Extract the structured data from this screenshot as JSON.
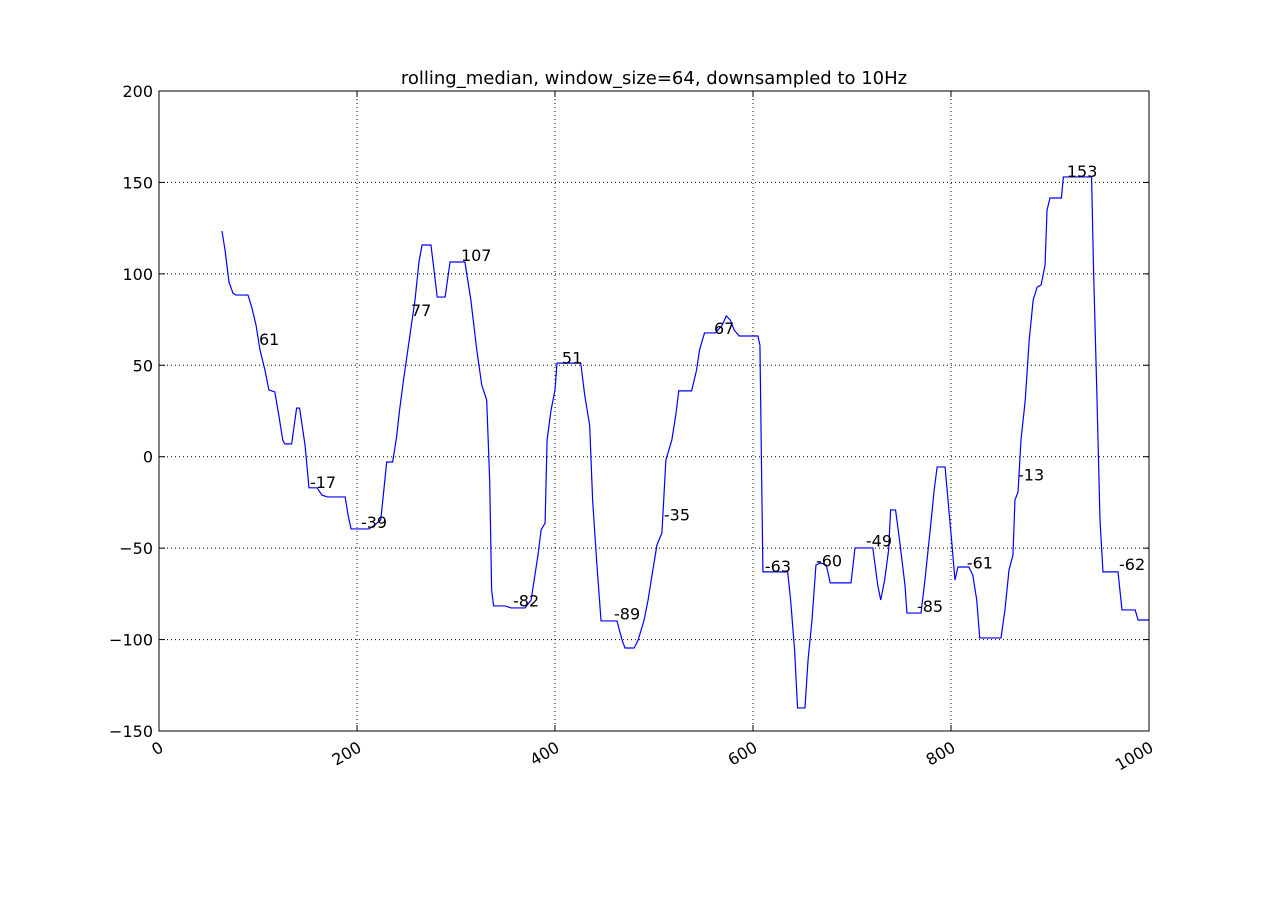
{
  "chart_data": {
    "type": "line",
    "title": "rolling_median, window_size=64, downsampled to 10Hz",
    "x": [
      63.6,
      66.7,
      70.7,
      74.7,
      77.8,
      89.9,
      93.9,
      98,
      102,
      107,
      111,
      117,
      121,
      125,
      127,
      134,
      139,
      142,
      147.5,
      151.5,
      159.6,
      164.6,
      170,
      188,
      191,
      194,
      212,
      218,
      224,
      230,
      236,
      240,
      243,
      247,
      253.5,
      258.6,
      262.6,
      265.7,
      274.7,
      277.8,
      281,
      289,
      294,
      309,
      315,
      321,
      326,
      331,
      334,
      336,
      338,
      349.5,
      355.6,
      369.7,
      375.8,
      379,
      382.8,
      386,
      390,
      392,
      396,
      400,
      402,
      426,
      430,
      435,
      438,
      442,
      446.5,
      462.6,
      467.7,
      470.7,
      480,
      484,
      490,
      494,
      498,
      503,
      508,
      512,
      518,
      522,
      525,
      538,
      543,
      546,
      551,
      562,
      569,
      573,
      577,
      581,
      586,
      605,
      607,
      610,
      635,
      638,
      642,
      645,
      652.5,
      655.6,
      659.6,
      663.6,
      668,
      674,
      678,
      699,
      703,
      721,
      726,
      729,
      733,
      737,
      739,
      744,
      748,
      753.5,
      755.5,
      769.7,
      773.7,
      779,
      783,
      786,
      794,
      797,
      801,
      804,
      807,
      818,
      822,
      826,
      829,
      850.5,
      854.5,
      858.6,
      862.6,
      864.6,
      867.7,
      870.7,
      875,
      879,
      883,
      887,
      891,
      895,
      897,
      900,
      911.5,
      913.5,
      942,
      944,
      947.5,
      950.5,
      953.5,
      968.7,
      972.7,
      986,
      989,
      1000
    ],
    "series": [
      {
        "color": "#0000ff",
        "values": [
          123.4,
          113,
          95.5,
          89.5,
          88.4,
          88.4,
          81.3,
          72,
          58.4,
          47.4,
          36.5,
          35.4,
          22.8,
          9.1,
          7,
          7,
          26.6,
          26.6,
          6.4,
          -17,
          -17,
          -21,
          -22,
          -22,
          -32,
          -39.5,
          -39.5,
          -37.3,
          -34.6,
          -2.9,
          -2.9,
          10.8,
          25.5,
          42,
          66.6,
          85.7,
          106.5,
          115.8,
          115.8,
          102,
          87.3,
          87.3,
          106.5,
          106.5,
          85.7,
          58.4,
          39.2,
          31,
          -12.7,
          -72.9,
          -81.6,
          -81.6,
          -82.7,
          -82.7,
          -78.4,
          -67.4,
          -53.7,
          -40,
          -36.3,
          9.1,
          25.5,
          36.5,
          51.2,
          51.2,
          33.7,
          17.3,
          -23.7,
          -56.5,
          -89.8,
          -89.8,
          -100.2,
          -104.6,
          -104.6,
          -100.2,
          -89.3,
          -78.4,
          -64.7,
          -48.2,
          -41.7,
          -1.8,
          9.1,
          22.8,
          36,
          36,
          47.4,
          58.4,
          67.7,
          67.7,
          72,
          77,
          74.8,
          69.3,
          66,
          66,
          61,
          -63,
          -63,
          -78.4,
          -105.7,
          -137.4,
          -137.4,
          -111.2,
          -89.3,
          -59.2,
          -58.1,
          -59.2,
          -69,
          -69,
          -49.9,
          -49.9,
          -70.2,
          -78.4,
          -67.4,
          -51,
          -29.1,
          -29.1,
          -45.5,
          -70.2,
          -85.5,
          -85.5,
          -67.4,
          -40,
          -18.2,
          -5.6,
          -5.6,
          -23.7,
          -48.2,
          -67.4,
          -60.3,
          -60.3,
          -64.7,
          -78.4,
          -99.1,
          -99.1,
          -83.8,
          -61.9,
          -53.7,
          -23.7,
          -19.3,
          9.1,
          31,
          63.8,
          85.7,
          92.8,
          93.9,
          104.8,
          134.9,
          141.5,
          141.5,
          153,
          153,
          102,
          31,
          -34.6,
          -63,
          -63,
          -83.8,
          -83.8,
          -89.3,
          -89.3
        ]
      }
    ],
    "annotations": [
      {
        "x": 101,
        "y": 61
      },
      {
        "x": 152.5,
        "y": -17
      },
      {
        "x": 204,
        "y": -39
      },
      {
        "x": 254.5,
        "y": 77
      },
      {
        "x": 305,
        "y": 107
      },
      {
        "x": 357.6,
        "y": -82
      },
      {
        "x": 407,
        "y": 51
      },
      {
        "x": 459.6,
        "y": -89
      },
      {
        "x": 510,
        "y": -35
      },
      {
        "x": 560.6,
        "y": 67
      },
      {
        "x": 612,
        "y": -63
      },
      {
        "x": 663.6,
        "y": -60
      },
      {
        "x": 714,
        "y": -49
      },
      {
        "x": 765.6,
        "y": -85
      },
      {
        "x": 816,
        "y": -61
      },
      {
        "x": 867.7,
        "y": -13
      },
      {
        "x": 917,
        "y": 153
      },
      {
        "x": 969.7,
        "y": -62
      }
    ],
    "xlim": [
      0,
      1000
    ],
    "ylim": [
      -150,
      200
    ],
    "xticks": [
      0,
      200,
      400,
      600,
      800,
      1000
    ],
    "yticks": [
      {
        "value": -150,
        "label": "−150"
      },
      {
        "value": -100,
        "label": "−100"
      },
      {
        "value": -50,
        "label": "−50"
      },
      0,
      50,
      100,
      150,
      200
    ],
    "grid": true
  }
}
